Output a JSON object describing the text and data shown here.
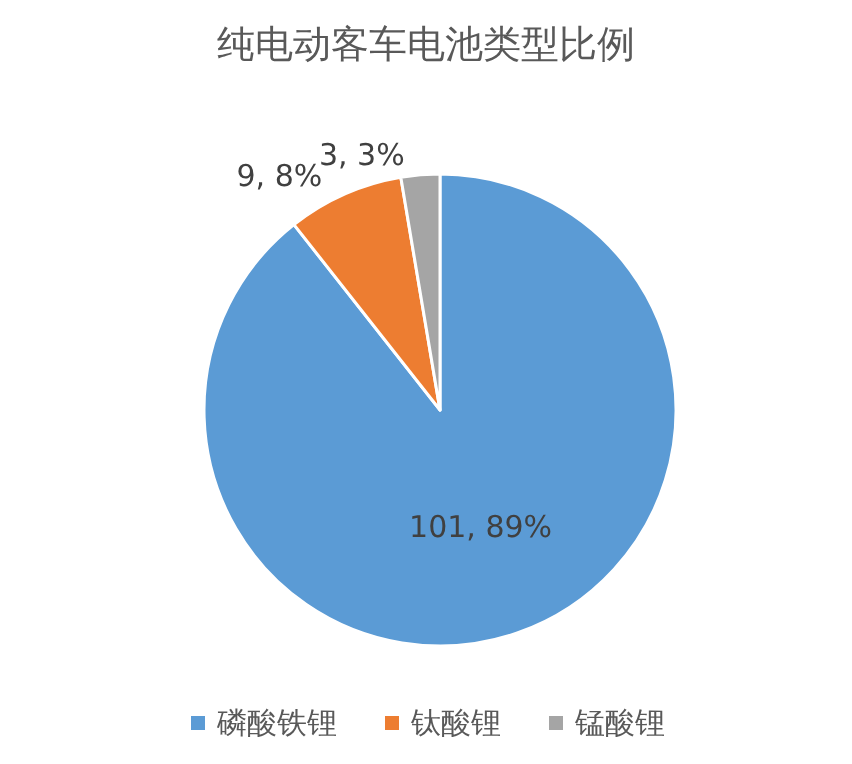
{
  "chart_data": {
    "type": "pie",
    "title": "纯电动客车电池类型比例",
    "categories": [
      "磷酸铁锂",
      "钛酸锂",
      "锰酸锂"
    ],
    "values": [
      101,
      9,
      3
    ],
    "value_labels": [
      "101, 89%",
      "9, 8%",
      "3, 3%"
    ],
    "colors": [
      "#5b9bd5",
      "#ed7d31",
      "#a5a5a5"
    ],
    "legend": "bottom"
  }
}
